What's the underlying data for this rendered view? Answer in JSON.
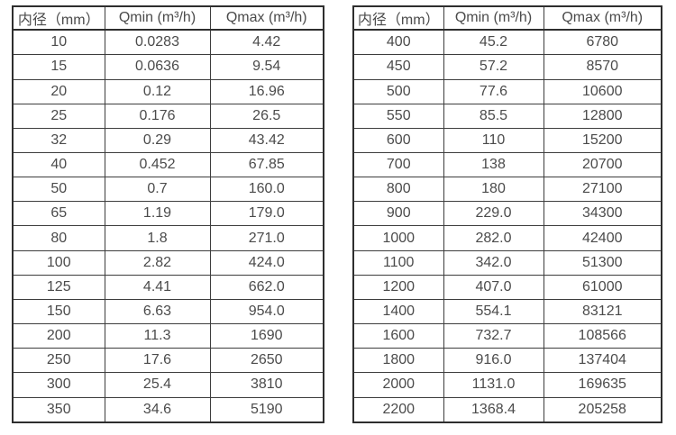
{
  "page": {
    "background_color": "#ffffff",
    "text_color": "#4b4b4b",
    "border_color": "#2e2e2e"
  },
  "tables": [
    {
      "name": "flow-spec-table-left",
      "headers": [
        "内径（mm）",
        "Qmin (m³/h)",
        "Qmax (m³/h)"
      ],
      "rows": [
        [
          "10",
          "0.0283",
          "4.42"
        ],
        [
          "15",
          "0.0636",
          "9.54"
        ],
        [
          "20",
          "0.12",
          "16.96"
        ],
        [
          "25",
          "0.176",
          "26.5"
        ],
        [
          "32",
          "0.29",
          "43.42"
        ],
        [
          "40",
          "0.452",
          "67.85"
        ],
        [
          "50",
          "0.7",
          "160.0"
        ],
        [
          "65",
          "1.19",
          "179.0"
        ],
        [
          "80",
          "1.8",
          "271.0"
        ],
        [
          "100",
          "2.82",
          "424.0"
        ],
        [
          "125",
          "4.41",
          "662.0"
        ],
        [
          "150",
          "6.63",
          "954.0"
        ],
        [
          "200",
          "11.3",
          "1690"
        ],
        [
          "250",
          "17.6",
          "2650"
        ],
        [
          "300",
          "25.4",
          "3810"
        ],
        [
          "350",
          "34.6",
          "5190"
        ]
      ]
    },
    {
      "name": "flow-spec-table-right",
      "headers": [
        "内径（mm）",
        "Qmin (m³/h)",
        "Qmax (m³/h)"
      ],
      "rows": [
        [
          "400",
          "45.2",
          "6780"
        ],
        [
          "450",
          "57.2",
          "8570"
        ],
        [
          "500",
          "77.6",
          "10600"
        ],
        [
          "550",
          "85.5",
          "12800"
        ],
        [
          "600",
          "110",
          "15200"
        ],
        [
          "700",
          "138",
          "20700"
        ],
        [
          "800",
          "180",
          "27100"
        ],
        [
          "900",
          "229.0",
          "34300"
        ],
        [
          "1000",
          "282.0",
          "42400"
        ],
        [
          "1100",
          "342.0",
          "51300"
        ],
        [
          "1200",
          "407.0",
          "61000"
        ],
        [
          "1400",
          "554.1",
          "83121"
        ],
        [
          "1600",
          "732.7",
          "108566"
        ],
        [
          "1800",
          "916.0",
          "137404"
        ],
        [
          "2000",
          "1131.0",
          "169635"
        ],
        [
          "2200",
          "1368.4",
          "205258"
        ]
      ]
    }
  ]
}
